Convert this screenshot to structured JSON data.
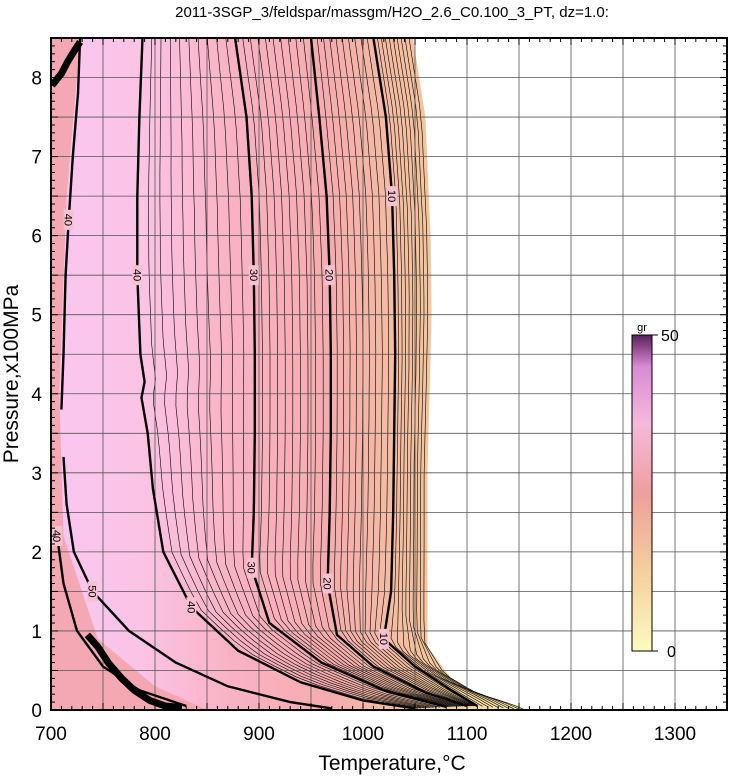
{
  "chart_data": {
    "type": "contour",
    "title": "2011-3SGP_3/feldspar/massgm/H2O_2.6_C0.100_3_PT, dz=1.0:",
    "xlabel": "Temperature,°C",
    "ylabel": "Pressure,x100MPa",
    "xlim": [
      700,
      1350
    ],
    "ylim": [
      0,
      8.5
    ],
    "xticks": [
      "700",
      "800",
      "900",
      "1000",
      "1100",
      "1200",
      "1300"
    ],
    "yticks": [
      "0",
      "1",
      "2",
      "3",
      "4",
      "5",
      "6",
      "7",
      "8"
    ],
    "grid": true,
    "colorbar": {
      "unit": "gr",
      "min_label": "0",
      "max_label": "50",
      "min": 0,
      "max": 50
    },
    "fill_boundary": [
      {
        "x": 1048,
        "y": 8.5
      },
      {
        "x": 1060,
        "y": 7.5
      },
      {
        "x": 1065,
        "y": 6.0
      },
      {
        "x": 1066,
        "y": 5.0
      },
      {
        "x": 1064,
        "y": 4.0
      },
      {
        "x": 1062,
        "y": 3.0
      },
      {
        "x": 1062,
        "y": 2.0
      },
      {
        "x": 1062,
        "y": 0.8
      },
      {
        "x": 1085,
        "y": 0.4
      },
      {
        "x": 1115,
        "y": 0.18
      },
      {
        "x": 1150,
        "y": 0.05
      },
      {
        "x": 1160,
        "y": 0.0
      }
    ],
    "contours": [
      {
        "level": 10,
        "label": "10",
        "points": [
          {
            "x": 1010,
            "y": 8.5
          },
          {
            "x": 1022,
            "y": 7.5
          },
          {
            "x": 1028,
            "y": 6.5
          },
          {
            "x": 1030,
            "y": 5.5
          },
          {
            "x": 1031,
            "y": 4.5
          },
          {
            "x": 1030,
            "y": 3.5
          },
          {
            "x": 1029,
            "y": 2.5
          },
          {
            "x": 1027,
            "y": 1.5
          },
          {
            "x": 1020,
            "y": 0.9
          },
          {
            "x": 1050,
            "y": 0.55
          },
          {
            "x": 1085,
            "y": 0.25
          },
          {
            "x": 1110,
            "y": 0.05
          }
        ]
      },
      {
        "level": 20,
        "label": "20",
        "points": [
          {
            "x": 950,
            "y": 8.5
          },
          {
            "x": 958,
            "y": 7.5
          },
          {
            "x": 965,
            "y": 6.5
          },
          {
            "x": 968,
            "y": 5.5
          },
          {
            "x": 969,
            "y": 4.5
          },
          {
            "x": 969,
            "y": 3.5
          },
          {
            "x": 968,
            "y": 2.5
          },
          {
            "x": 966,
            "y": 1.6
          },
          {
            "x": 975,
            "y": 0.95
          },
          {
            "x": 1010,
            "y": 0.55
          },
          {
            "x": 1060,
            "y": 0.22
          },
          {
            "x": 1100,
            "y": 0.05
          }
        ]
      },
      {
        "level": 30,
        "label": "30",
        "points": [
          {
            "x": 877,
            "y": 8.5
          },
          {
            "x": 888,
            "y": 7.5
          },
          {
            "x": 893,
            "y": 6.5
          },
          {
            "x": 895,
            "y": 5.5
          },
          {
            "x": 896,
            "y": 4.5
          },
          {
            "x": 896,
            "y": 3.5
          },
          {
            "x": 895,
            "y": 2.5
          },
          {
            "x": 893,
            "y": 1.8
          },
          {
            "x": 910,
            "y": 1.1
          },
          {
            "x": 960,
            "y": 0.6
          },
          {
            "x": 1020,
            "y": 0.25
          },
          {
            "x": 1080,
            "y": 0.04
          }
        ]
      },
      {
        "level": 40,
        "label": "40",
        "points": [
          {
            "x": 788,
            "y": 8.5
          },
          {
            "x": 785,
            "y": 7.5
          },
          {
            "x": 783,
            "y": 6.5
          },
          {
            "x": 783,
            "y": 5.5
          },
          {
            "x": 786,
            "y": 4.5
          },
          {
            "x": 790,
            "y": 4.15
          },
          {
            "x": 787,
            "y": 3.95
          },
          {
            "x": 793,
            "y": 3.5
          },
          {
            "x": 798,
            "y": 2.8
          },
          {
            "x": 808,
            "y": 2.0
          },
          {
            "x": 835,
            "y": 1.3
          },
          {
            "x": 880,
            "y": 0.75
          },
          {
            "x": 940,
            "y": 0.35
          },
          {
            "x": 1000,
            "y": 0.12
          },
          {
            "x": 1050,
            "y": 0.02
          }
        ]
      },
      {
        "level": 50,
        "label": "50",
        "points": [
          {
            "x": 712,
            "y": 3.2
          },
          {
            "x": 715,
            "y": 2.6
          },
          {
            "x": 722,
            "y": 2.0
          },
          {
            "x": 740,
            "y": 1.5
          },
          {
            "x": 775,
            "y": 1.0
          },
          {
            "x": 820,
            "y": 0.6
          },
          {
            "x": 870,
            "y": 0.3
          },
          {
            "x": 930,
            "y": 0.1
          },
          {
            "x": 970,
            "y": 0.02
          }
        ]
      },
      {
        "level": 40,
        "label": "40",
        "points": [
          {
            "x": 728,
            "y": 8.5
          },
          {
            "x": 726,
            "y": 7.8
          },
          {
            "x": 721,
            "y": 7.0
          },
          {
            "x": 717,
            "y": 6.2
          },
          {
            "x": 714,
            "y": 5.5
          },
          {
            "x": 712,
            "y": 4.5
          },
          {
            "x": 710,
            "y": 3.8
          }
        ]
      },
      {
        "level": 40,
        "label": "40",
        "points": [
          {
            "x": 706,
            "y": 2.2
          },
          {
            "x": 712,
            "y": 1.6
          },
          {
            "x": 725,
            "y": 1.0
          },
          {
            "x": 750,
            "y": 0.55
          },
          {
            "x": 785,
            "y": 0.25
          },
          {
            "x": 830,
            "y": 0.05
          }
        ]
      }
    ],
    "stair_edge": [
      {
        "x": 701,
        "y": 7.9
      },
      {
        "x": 710,
        "y": 8.05
      },
      {
        "x": 716,
        "y": 8.2
      },
      {
        "x": 723,
        "y": 8.35
      },
      {
        "x": 728,
        "y": 8.45
      }
    ],
    "stair_edge_low": [
      {
        "x": 735,
        "y": 0.95
      },
      {
        "x": 745,
        "y": 0.8
      },
      {
        "x": 755,
        "y": 0.6
      },
      {
        "x": 768,
        "y": 0.4
      },
      {
        "x": 780,
        "y": 0.25
      },
      {
        "x": 795,
        "y": 0.12
      },
      {
        "x": 810,
        "y": 0.05
      },
      {
        "x": 826,
        "y": 0.03
      }
    ]
  }
}
